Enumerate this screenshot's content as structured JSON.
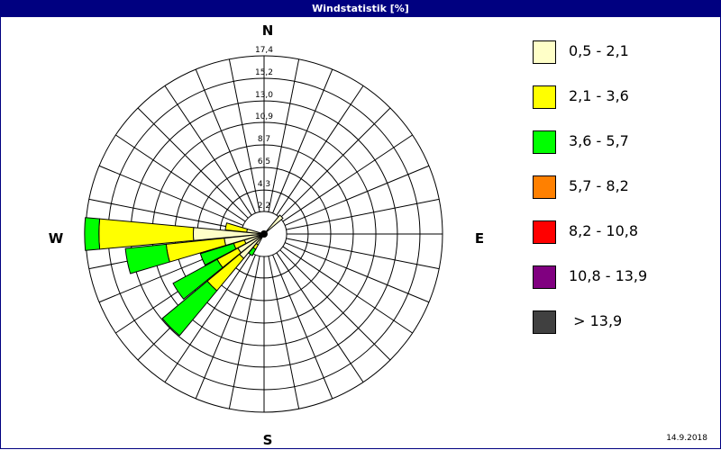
{
  "title": "Windstatistik [%]",
  "date": "14.9.2018",
  "compass": {
    "n": "N",
    "e": "E",
    "s": "S",
    "w": "W"
  },
  "chart_data": {
    "type": "wind-rose",
    "title": "Windstatistik [%]",
    "unit": "%",
    "sectors": 32,
    "ring_labels": [
      "2,2",
      "4,3",
      "6,5",
      "8,7",
      "10,9",
      "13,0",
      "15,2",
      "17,4"
    ],
    "ring_values": [
      2.2,
      4.3,
      6.5,
      8.7,
      10.9,
      13.0,
      15.2,
      17.4
    ],
    "rmax": 17.4,
    "grid": true,
    "legend_position": "right",
    "classes": [
      {
        "label": "0,5 - 2,1",
        "color": "#FFFFC8"
      },
      {
        "label": "2,1 - 3,6",
        "color": "#FFFF00"
      },
      {
        "label": "3,6 - 5,7",
        "color": "#00FF00"
      },
      {
        "label": "5,7 - 8,2",
        "color": "#FF8000"
      },
      {
        "label": "8,2 - 10,8",
        "color": "#FF0000"
      },
      {
        "label": "10,8 - 13,9",
        "color": "#800080"
      },
      {
        "label": " > 13,9",
        "color": "#404040"
      }
    ],
    "bars": [
      {
        "direction_deg": 45,
        "cumulative_percent": [
          2.4
        ]
      },
      {
        "direction_deg": 213.75,
        "cumulative_percent": [
          1.2,
          1.7,
          2.4
        ]
      },
      {
        "direction_deg": 225,
        "cumulative_percent": [
          3.1,
          7.2,
          12.9
        ]
      },
      {
        "direction_deg": 236.25,
        "cumulative_percent": [
          2.9,
          5.2,
          10.1
        ]
      },
      {
        "direction_deg": 247.5,
        "cumulative_percent": [
          2.0,
          3.1,
          6.5
        ]
      },
      {
        "direction_deg": 258.75,
        "cumulative_percent": [
          3.9,
          9.6,
          13.6
        ]
      },
      {
        "direction_deg": 270,
        "cumulative_percent": [
          6.9,
          16.1,
          17.5
        ]
      },
      {
        "direction_deg": 281.25,
        "cumulative_percent": [
          1.7,
          3.8
        ]
      }
    ]
  }
}
